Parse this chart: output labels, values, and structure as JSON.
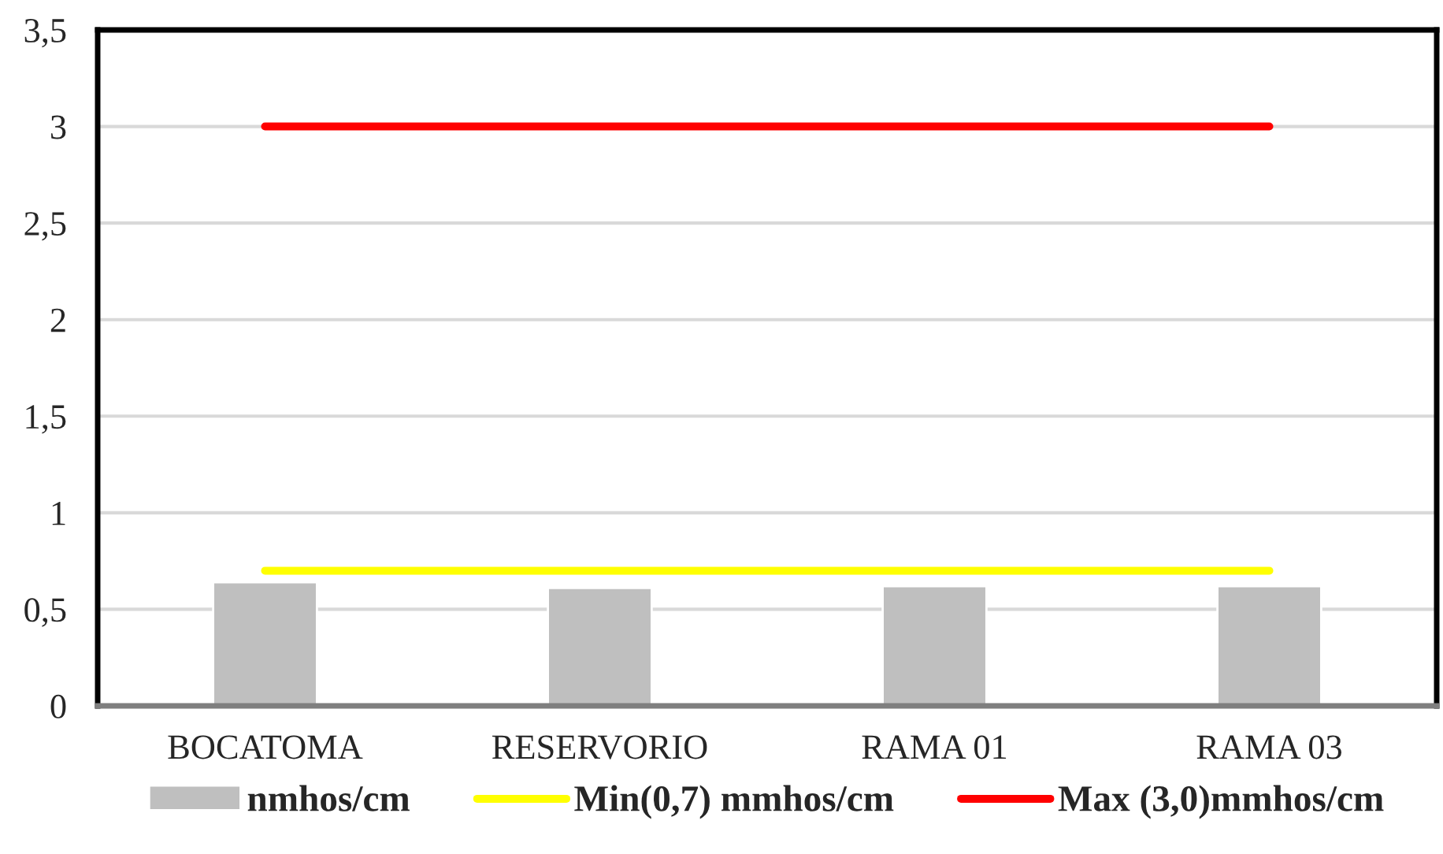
{
  "chart_data": {
    "type": "bar",
    "categories": [
      "BOCATOMA",
      "RESERVORIO",
      "RAMA 01",
      "RAMA 03"
    ],
    "series": [
      {
        "name": "nmhos/cm",
        "color": "#bfbfbf",
        "values": [
          0.64,
          0.61,
          0.62,
          0.62
        ]
      },
      {
        "name": "Min(0,7) mmhos/cm",
        "type": "line",
        "color": "#ffff00",
        "values": [
          0.7,
          0.7,
          0.7,
          0.7
        ]
      },
      {
        "name": "Max (3,0)mmhos/cm",
        "type": "line",
        "color": "#ff0000",
        "values": [
          3,
          3,
          3,
          3
        ]
      }
    ],
    "ylim": [
      0,
      3.5
    ],
    "yticks": [
      0,
      {
        "value": 0.5,
        "label": "0,5"
      },
      1,
      {
        "value": 1.5,
        "label": "1,5"
      },
      2,
      {
        "value": 2.5,
        "label": "2,5"
      },
      3,
      {
        "value": 3.5,
        "label": "3,5"
      }
    ],
    "grid": "y",
    "legend": "bottom"
  }
}
